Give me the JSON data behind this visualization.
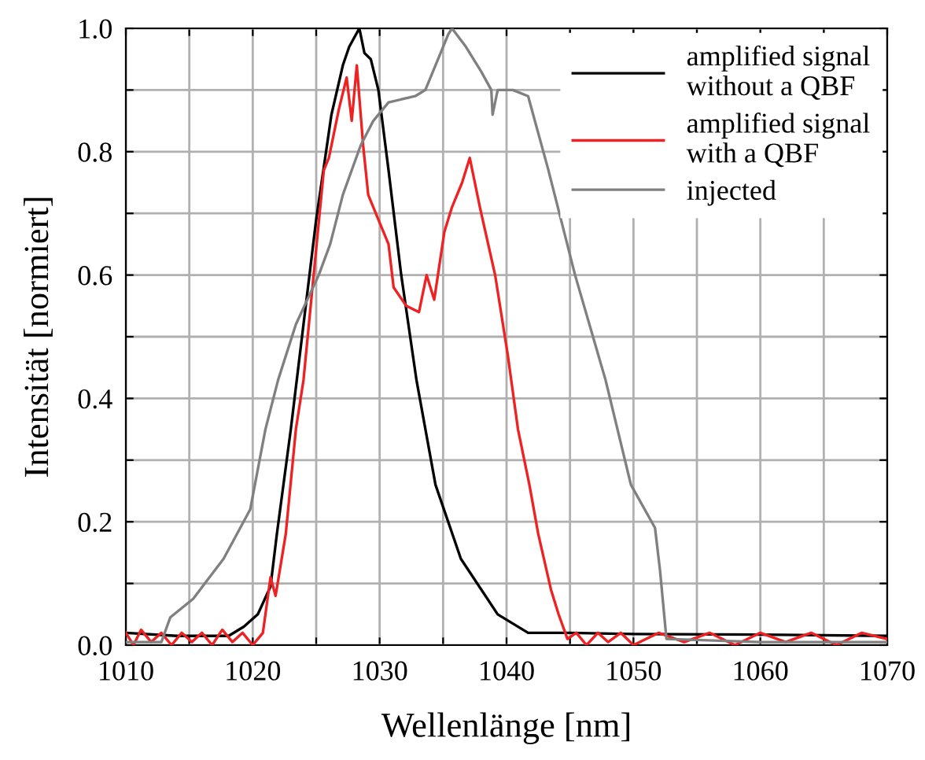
{
  "chart_data": {
    "type": "line",
    "xlabel": "Wellenlänge [nm]",
    "ylabel": "Intensität [normiert]",
    "xlim": [
      1010,
      1070
    ],
    "ylim": [
      0,
      1
    ],
    "xticks": [
      1010,
      {
        "value": 1015,
        "label": null
      },
      1020,
      {
        "value": 1025,
        "label": null
      },
      1030,
      {
        "value": 1035,
        "label": null
      },
      1040,
      {
        "value": 1045,
        "label": null
      },
      1050,
      {
        "value": 1055,
        "label": null
      },
      1060,
      {
        "value": 1065,
        "label": null
      },
      1070
    ],
    "yticks": [
      {
        "value": 0,
        "label": "0.0"
      },
      {
        "value": 0.1,
        "label": null
      },
      {
        "value": 0.2,
        "label": "0.2"
      },
      {
        "value": 0.3,
        "label": null
      },
      {
        "value": 0.4,
        "label": "0.4"
      },
      {
        "value": 0.5,
        "label": null
      },
      {
        "value": 0.6,
        "label": "0.6"
      },
      {
        "value": 0.7,
        "label": null
      },
      {
        "value": 0.8,
        "label": "0.8"
      },
      {
        "value": 0.9,
        "label": null
      },
      {
        "value": 1.0,
        "label": "1.0"
      }
    ],
    "grid": true,
    "legend": "top right",
    "marker": "none",
    "line_style": "solid",
    "series": [
      {
        "name": "amplified signal\nwithout a QBF",
        "color": "#000000",
        "x": [
          1010,
          1014,
          1018.1,
          1019.3,
          1020.4,
          1021.4,
          1021.9,
          1023.0,
          1024.0,
          1025.0,
          1026.2,
          1027.1,
          1027.6,
          1028.4,
          1028.8,
          1029.3,
          1029.9,
          1030.7,
          1031.7,
          1032.9,
          1034.4,
          1036.4,
          1039.3,
          1041.7,
          1045,
          1050,
          1060,
          1070
        ],
        "values": [
          0.02,
          0.015,
          0.015,
          0.03,
          0.05,
          0.095,
          0.18,
          0.35,
          0.52,
          0.69,
          0.86,
          0.94,
          0.97,
          1.0,
          0.96,
          0.95,
          0.9,
          0.77,
          0.6,
          0.43,
          0.26,
          0.14,
          0.05,
          0.02,
          0.02,
          0.018,
          0.017,
          0.015
        ]
      },
      {
        "name": "amplified signal\nwith a QBF",
        "color": "#ee2222",
        "x": [
          1010,
          1010.6,
          1011.2,
          1012,
          1012.8,
          1013.6,
          1014.4,
          1015.2,
          1016,
          1016.8,
          1017.6,
          1018.4,
          1019.2,
          1020,
          1020.8,
          1021.4,
          1021.8,
          1022.6,
          1023.4,
          1024.0,
          1024.8,
          1025.6,
          1026.0,
          1026.8,
          1027.4,
          1027.8,
          1028.2,
          1028.7,
          1029.1,
          1029.9,
          1030.7,
          1031.1,
          1032.1,
          1033.1,
          1033.7,
          1034.3,
          1035.1,
          1035.7,
          1036.5,
          1037.1,
          1037.9,
          1039.1,
          1040.1,
          1040.9,
          1041.8,
          1042.5,
          1043.5,
          1044.1,
          1044.8,
          1045.5,
          1046.3,
          1047.2,
          1048,
          1049,
          1050,
          1052,
          1054,
          1056,
          1058,
          1060,
          1062,
          1064,
          1066,
          1068,
          1070
        ],
        "values": [
          0.02,
          0.0,
          0.025,
          0.005,
          0.02,
          0.0,
          0.02,
          0.005,
          0.02,
          0.0,
          0.025,
          0.005,
          0.02,
          0.0,
          0.02,
          0.11,
          0.08,
          0.18,
          0.35,
          0.43,
          0.6,
          0.77,
          0.79,
          0.87,
          0.92,
          0.85,
          0.94,
          0.81,
          0.73,
          0.69,
          0.65,
          0.58,
          0.55,
          0.54,
          0.6,
          0.56,
          0.67,
          0.71,
          0.75,
          0.79,
          0.71,
          0.6,
          0.47,
          0.35,
          0.26,
          0.18,
          0.09,
          0.05,
          0.01,
          0.02,
          0.0,
          0.02,
          0.005,
          0.02,
          0.0,
          0.02,
          0.005,
          0.02,
          0.0,
          0.02,
          0.005,
          0.02,
          0.0,
          0.02,
          0.01
        ]
      },
      {
        "name": "injected",
        "color": "#808080",
        "x": [
          1010,
          1012.8,
          1013.5,
          1015.3,
          1017.7,
          1019.8,
          1021.0,
          1022.0,
          1023.4,
          1025.2,
          1026.1,
          1027.1,
          1028.5,
          1029.5,
          1030.7,
          1032.8,
          1033.6,
          1034.4,
          1035.4,
          1035.7,
          1036.8,
          1038.0,
          1038.8,
          1038.9,
          1039.3,
          1040.5,
          1041.7,
          1043.3,
          1045.4,
          1047.8,
          1049.8,
          1051.7,
          1052.1,
          1052.6,
          1060,
          1070
        ],
        "values": [
          0.005,
          0.005,
          0.045,
          0.075,
          0.14,
          0.22,
          0.35,
          0.43,
          0.52,
          0.6,
          0.65,
          0.73,
          0.81,
          0.85,
          0.88,
          0.89,
          0.9,
          0.94,
          0.99,
          1.0,
          0.97,
          0.93,
          0.9,
          0.86,
          0.9,
          0.9,
          0.89,
          0.77,
          0.6,
          0.43,
          0.26,
          0.19,
          0.12,
          0.01,
          0.005,
          0.005
        ]
      }
    ]
  }
}
